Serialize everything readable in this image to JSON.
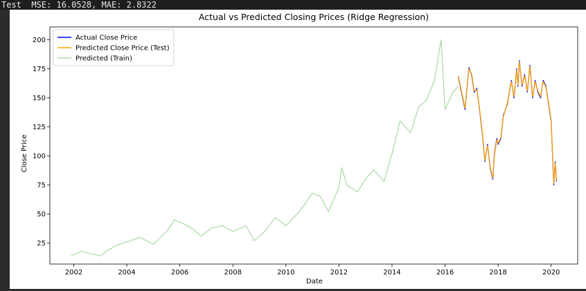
{
  "console": {
    "output_text": "Test  MSE: 16.0528, MAE: 2.8322"
  },
  "colors": {
    "actual": "#0000ff",
    "test": "#ffa500",
    "train": "#a9d8a4"
  },
  "chart_data": {
    "type": "line",
    "title": "Actual vs Predicted Closing Prices (Ridge Regression)",
    "xlabel": "Date",
    "ylabel": "Close Price",
    "xlim": [
      2001.1,
      2021.0
    ],
    "ylim": [
      7,
      211
    ],
    "xticks": [
      2002,
      2004,
      2006,
      2008,
      2010,
      2012,
      2014,
      2016,
      2018,
      2020
    ],
    "yticks": [
      25,
      50,
      75,
      100,
      125,
      150,
      175,
      200
    ],
    "grid": false,
    "legend": {
      "position": "top-left",
      "entries": [
        "Actual Close Price",
        "Predicted Close Price (Test)",
        "Predicted (Train)"
      ]
    },
    "series": [
      {
        "name": "Actual Close Price",
        "color": "#0000ff",
        "x": [
          2016.5,
          2016.75,
          2016.9,
          2017.0,
          2017.1,
          2017.2,
          2017.3,
          2017.4,
          2017.5,
          2017.6,
          2017.7,
          2017.8,
          2017.85,
          2017.95,
          2018.0,
          2018.1,
          2018.2,
          2018.35,
          2018.5,
          2018.6,
          2018.7,
          2018.75,
          2018.8,
          2018.9,
          2019.0,
          2019.1,
          2019.2,
          2019.3,
          2019.4,
          2019.5,
          2019.6,
          2019.7,
          2019.8,
          2019.9,
          2020.0,
          2020.1,
          2020.15,
          2020.2
        ],
        "values": [
          168,
          140,
          176,
          170,
          155,
          158,
          140,
          120,
          95,
          110,
          90,
          80,
          100,
          115,
          110,
          115,
          135,
          145,
          165,
          150,
          175,
          160,
          182,
          160,
          170,
          155,
          178,
          150,
          165,
          155,
          150,
          165,
          160,
          145,
          130,
          75,
          95,
          78
        ]
      },
      {
        "name": "Predicted Close Price (Test)",
        "color": "#ffa500",
        "x": [
          2016.5,
          2016.75,
          2016.9,
          2017.0,
          2017.1,
          2017.2,
          2017.3,
          2017.4,
          2017.5,
          2017.6,
          2017.7,
          2017.8,
          2017.85,
          2017.95,
          2018.0,
          2018.1,
          2018.2,
          2018.35,
          2018.5,
          2018.6,
          2018.7,
          2018.75,
          2018.8,
          2018.9,
          2019.0,
          2019.1,
          2019.2,
          2019.3,
          2019.4,
          2019.5,
          2019.6,
          2019.7,
          2019.8,
          2019.9,
          2020.0,
          2020.1,
          2020.15,
          2020.2
        ],
        "values": [
          169,
          141,
          175,
          171,
          156,
          157,
          141,
          121,
          96,
          109,
          91,
          81,
          99,
          114,
          111,
          116,
          134,
          146,
          164,
          151,
          174,
          161,
          181,
          161,
          169,
          156,
          177,
          151,
          164,
          156,
          151,
          164,
          159,
          146,
          131,
          76,
          94,
          79
        ]
      },
      {
        "name": "Predicted (Train)",
        "color": "#a9d8a4",
        "x": [
          2001.9,
          2002.3,
          2002.6,
          2003.0,
          2003.3,
          2003.6,
          2004.0,
          2004.5,
          2005.0,
          2005.5,
          2005.8,
          2006.2,
          2006.5,
          2006.8,
          2007.2,
          2007.6,
          2008.0,
          2008.5,
          2008.8,
          2009.2,
          2009.6,
          2010.0,
          2010.5,
          2011.0,
          2011.3,
          2011.6,
          2012.0,
          2012.1,
          2012.3,
          2012.7,
          2013.0,
          2013.3,
          2013.7,
          2014.0,
          2014.3,
          2014.7,
          2015.0,
          2015.3,
          2015.6,
          2015.85,
          2016.0,
          2016.3,
          2016.5
        ],
        "values": [
          14,
          18,
          16,
          14,
          19,
          23,
          26,
          30,
          24,
          35,
          45,
          41,
          37,
          31,
          38,
          40,
          35,
          40,
          27,
          35,
          47,
          40,
          52,
          68,
          65,
          52,
          73,
          90,
          75,
          69,
          80,
          88,
          78,
          102,
          130,
          120,
          142,
          148,
          165,
          200,
          140,
          155,
          160
        ]
      }
    ]
  }
}
